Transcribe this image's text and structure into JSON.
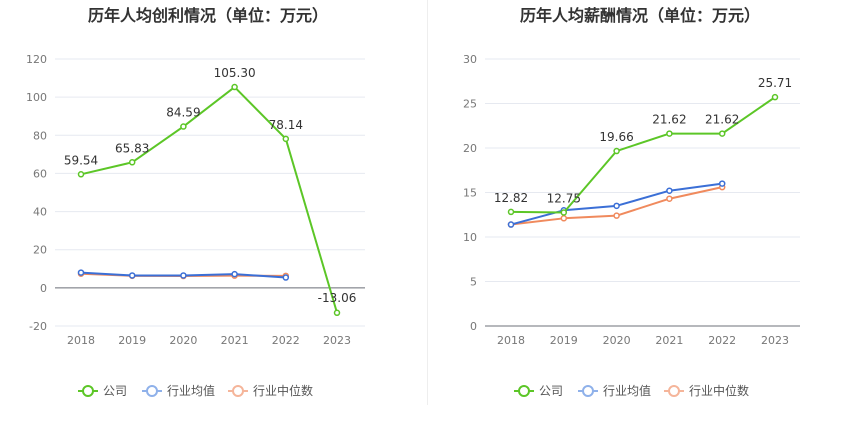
{
  "chart_data": [
    {
      "type": "line",
      "title": "历年人均创利情况（单位：万元）",
      "categories": [
        "2018",
        "2019",
        "2020",
        "2021",
        "2022",
        "2023"
      ],
      "ylim": [
        -20,
        120
      ],
      "yticks": [
        -20,
        0,
        20,
        40,
        60,
        80,
        100,
        120
      ],
      "grid": true,
      "legend_position": "bottom-center",
      "series": [
        {
          "name": "公司",
          "color": "#5cc627",
          "values": [
            59.54,
            65.83,
            84.59,
            105.3,
            78.14,
            -13.06
          ],
          "labels": [
            "59.54",
            "65.83",
            "84.59",
            "105.30",
            "78.14",
            "-13.06"
          ]
        },
        {
          "name": "行业均值",
          "color": "#3b6fd6",
          "values": [
            8.0,
            6.5,
            6.5,
            7.2,
            5.4,
            null
          ]
        },
        {
          "name": "行业中位数",
          "color": "#f08a5d",
          "values": [
            7.4,
            6.3,
            6.2,
            6.4,
            6.3,
            null
          ]
        }
      ]
    },
    {
      "type": "line",
      "title": "历年人均薪酬情况（单位：万元）",
      "categories": [
        "2018",
        "2019",
        "2020",
        "2021",
        "2022",
        "2023"
      ],
      "ylim": [
        0,
        30
      ],
      "yticks": [
        0,
        5,
        10,
        15,
        20,
        25,
        30
      ],
      "grid": true,
      "legend_position": "bottom-center",
      "series": [
        {
          "name": "公司",
          "color": "#5cc627",
          "values": [
            12.82,
            12.75,
            19.66,
            21.62,
            21.62,
            25.71
          ],
          "labels": [
            "12.82",
            "12.75",
            "19.66",
            "21.62",
            "21.62",
            "25.71"
          ]
        },
        {
          "name": "行业均值",
          "color": "#3b6fd6",
          "values": [
            11.4,
            13.0,
            13.5,
            15.2,
            16.0,
            null
          ]
        },
        {
          "name": "行业中位数",
          "color": "#f08a5d",
          "values": [
            11.4,
            12.1,
            12.4,
            14.3,
            15.6,
            null
          ]
        }
      ]
    }
  ],
  "legend_icon_colors": {
    "公司": "#5cc627",
    "行业均值": "#8fb1ea",
    "行业中位数": "#f5b59a"
  }
}
